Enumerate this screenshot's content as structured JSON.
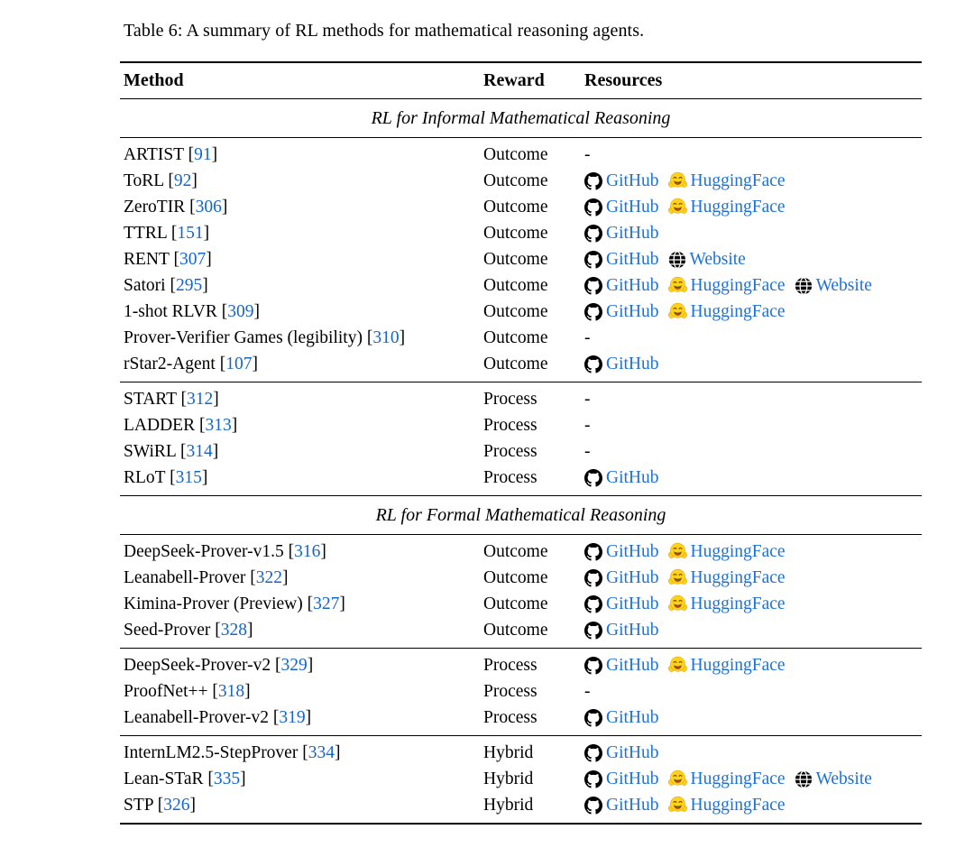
{
  "caption": "Table 6: A summary of RL methods for mathematical reasoning agents.",
  "columns": [
    "Method",
    "Reward",
    "Resources"
  ],
  "punctuation": {
    "cite_open": "[",
    "cite_close": "]"
  },
  "empty_resource": "-",
  "colors": {
    "link_blue": "#1c72d6",
    "citation_blue": "#1566c8",
    "text": "#000000",
    "rule": "#000000",
    "huggingface_yellow": "#FFD21E",
    "github_black": "#000000",
    "globe_black": "#000000"
  },
  "resource_labels": {
    "github": "GitHub",
    "huggingface": "HuggingFace",
    "website": "Website"
  },
  "resource_icons": {
    "github": "github-icon",
    "huggingface": "huggingface-icon",
    "website": "globe-icon"
  },
  "sections": [
    {
      "header": "RL for Informal Mathematical Reasoning",
      "groups": [
        {
          "rows": [
            {
              "method": "ARTIST",
              "cite": "91",
              "reward": "Outcome",
              "resources": []
            },
            {
              "method": "ToRL",
              "cite": "92",
              "reward": "Outcome",
              "resources": [
                "github",
                "huggingface"
              ]
            },
            {
              "method": "ZeroTIR",
              "cite": "306",
              "reward": "Outcome",
              "resources": [
                "github",
                "huggingface"
              ]
            },
            {
              "method": "TTRL",
              "cite": "151",
              "reward": "Outcome",
              "resources": [
                "github"
              ]
            },
            {
              "method": "RENT",
              "cite": "307",
              "reward": "Outcome",
              "resources": [
                "github",
                "website"
              ]
            },
            {
              "method": "Satori",
              "cite": "295",
              "reward": "Outcome",
              "resources": [
                "github",
                "huggingface",
                "website"
              ]
            },
            {
              "method": "1-shot RLVR",
              "cite": "309",
              "reward": "Outcome",
              "resources": [
                "github",
                "huggingface"
              ]
            },
            {
              "method": "Prover-Verifier Games (legibility)",
              "cite": "310",
              "reward": "Outcome",
              "resources": []
            },
            {
              "method": "rStar2-Agent",
              "cite": "107",
              "reward": "Outcome",
              "resources": [
                "github"
              ]
            }
          ]
        },
        {
          "rows": [
            {
              "method": "START",
              "cite": "312",
              "reward": "Process",
              "resources": []
            },
            {
              "method": "LADDER",
              "cite": "313",
              "reward": "Process",
              "resources": []
            },
            {
              "method": "SWiRL",
              "cite": "314",
              "reward": "Process",
              "resources": []
            },
            {
              "method": "RLoT",
              "cite": "315",
              "reward": "Process",
              "resources": [
                "github"
              ]
            }
          ]
        }
      ]
    },
    {
      "header": "RL for Formal Mathematical Reasoning",
      "groups": [
        {
          "rows": [
            {
              "method": "DeepSeek-Prover-v1.5",
              "cite": "316",
              "reward": "Outcome",
              "resources": [
                "github",
                "huggingface"
              ]
            },
            {
              "method": "Leanabell-Prover",
              "cite": "322",
              "reward": "Outcome",
              "resources": [
                "github",
                "huggingface"
              ]
            },
            {
              "method": "Kimina-Prover (Preview)",
              "cite": "327",
              "reward": "Outcome",
              "resources": [
                "github",
                "huggingface"
              ]
            },
            {
              "method": "Seed-Prover",
              "cite": "328",
              "reward": "Outcome",
              "resources": [
                "github"
              ]
            }
          ]
        },
        {
          "rows": [
            {
              "method": "DeepSeek-Prover-v2",
              "cite": "329",
              "reward": "Process",
              "resources": [
                "github",
                "huggingface"
              ]
            },
            {
              "method": "ProofNet++",
              "cite": "318",
              "reward": "Process",
              "resources": []
            },
            {
              "method": "Leanabell-Prover-v2",
              "cite": "319",
              "reward": "Process",
              "resources": [
                "github"
              ]
            }
          ]
        },
        {
          "rows": [
            {
              "method": "InternLM2.5-StepProver",
              "cite": "334",
              "reward": "Hybrid",
              "resources": [
                "github"
              ]
            },
            {
              "method": "Lean-STaR",
              "cite": "335",
              "reward": "Hybrid",
              "resources": [
                "github",
                "huggingface",
                "website"
              ]
            },
            {
              "method": "STP",
              "cite": "326",
              "reward": "Hybrid",
              "resources": [
                "github",
                "huggingface"
              ]
            }
          ]
        }
      ]
    }
  ]
}
